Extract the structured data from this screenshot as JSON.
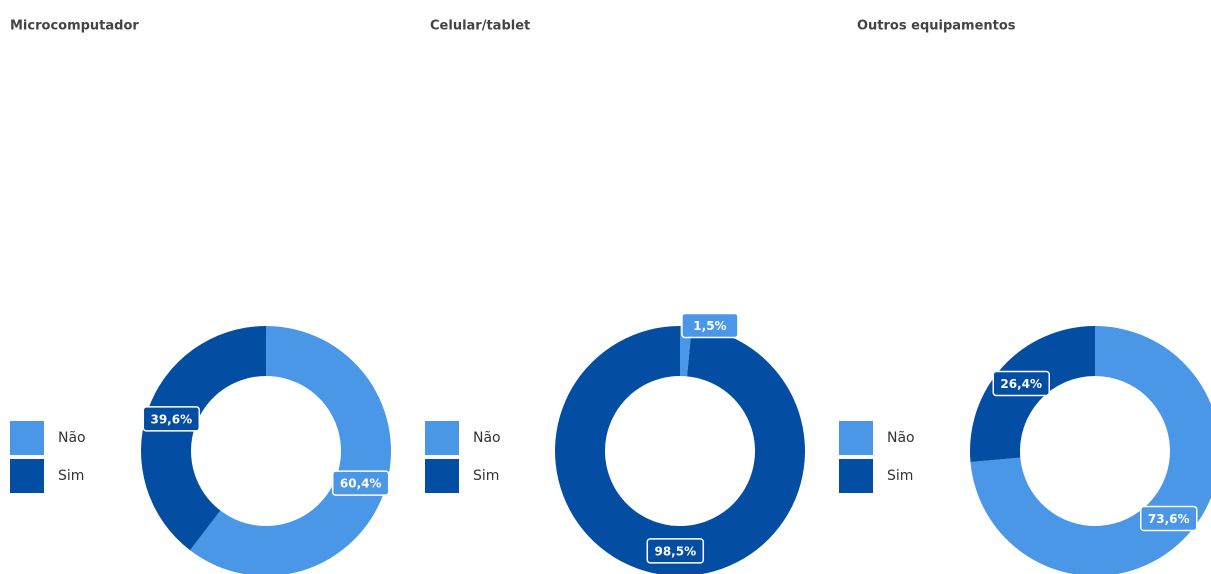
{
  "chart_data": [
    {
      "type": "pie",
      "title": "Microcomputador",
      "categories": [
        "Não",
        "Sim"
      ],
      "values": [
        60.4,
        39.6
      ],
      "value_labels": [
        "60,4%",
        "39,6%"
      ],
      "colors": [
        "#4a97e8",
        "#034ea2"
      ]
    },
    {
      "type": "pie",
      "title": "Celular/tablet",
      "categories": [
        "Não",
        "Sim"
      ],
      "values": [
        1.5,
        98.5
      ],
      "value_labels": [
        "1,5%",
        "98,5%"
      ],
      "colors": [
        "#4a97e8",
        "#034ea2"
      ]
    },
    {
      "type": "pie",
      "title": "Outros equipamentos",
      "categories": [
        "Não",
        "Sim"
      ],
      "values": [
        73.6,
        26.4
      ],
      "value_labels": [
        "73,6%",
        "26,4%"
      ],
      "colors": [
        "#4a97e8",
        "#034ea2"
      ]
    }
  ]
}
